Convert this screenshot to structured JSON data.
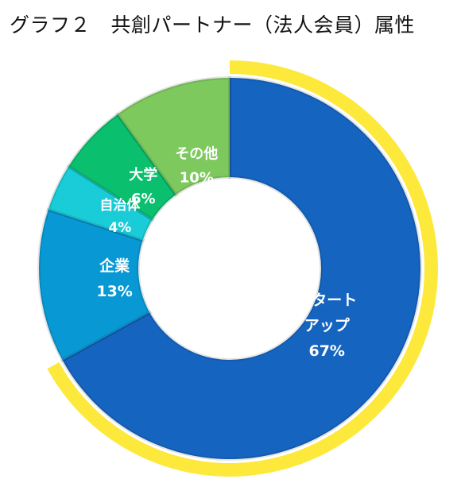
{
  "title": "グラフ２　共創パートナー（法人会員）属性",
  "chart_data": {
    "type": "pie",
    "variant": "donut",
    "title": "グラフ２　共創パートナー（法人会員）属性",
    "slices": [
      {
        "label_lines": [
          "スタート",
          "アップ"
        ],
        "value": 67,
        "percent_label": "67%",
        "color": "#1565C0"
      },
      {
        "label_lines": [
          "企業"
        ],
        "value": 13,
        "percent_label": "13%",
        "color": "#0898D4"
      },
      {
        "label_lines": [
          "自治体"
        ],
        "value": 4,
        "percent_label": "4%",
        "color": "#19CCD8"
      },
      {
        "label_lines": [
          "大学"
        ],
        "value": 6,
        "percent_label": "6%",
        "color": "#0ABF6E"
      },
      {
        "label_lines": [
          "その他"
        ],
        "value": 10,
        "percent_label": "10%",
        "color": "#7DC95E"
      }
    ],
    "highlight_arc": {
      "slice": "スタートアップ",
      "color": "#FDE93C"
    },
    "legend": "none"
  }
}
